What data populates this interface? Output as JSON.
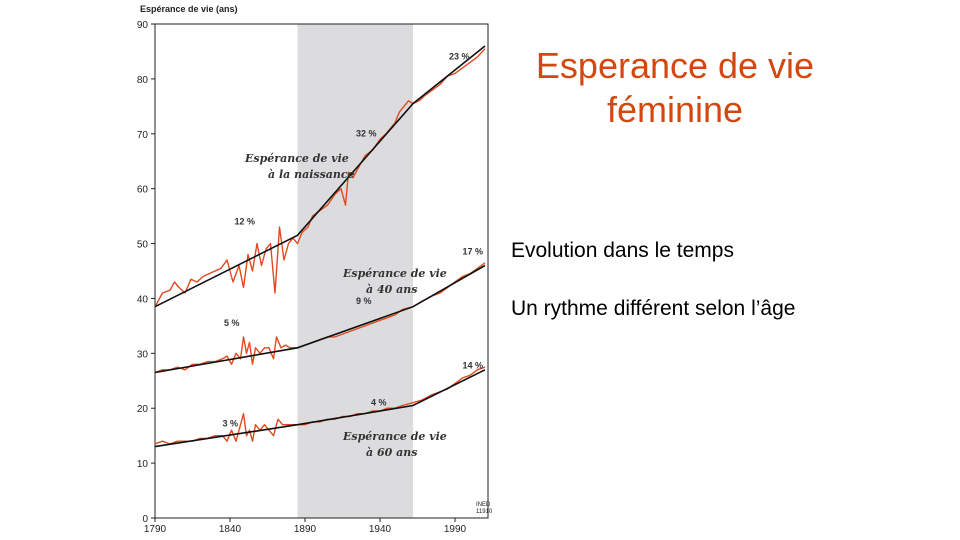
{
  "slide": {
    "title": "Esperance de vie féminine",
    "bullets": [
      "Evolution dans le temps",
      "Un rythme différent selon l’âge"
    ]
  },
  "chart_data": {
    "type": "line",
    "ylabel": "Espérance de vie (ans)",
    "xlim": [
      1790,
      2012
    ],
    "ylim": [
      0,
      90
    ],
    "x_ticks": [
      1790,
      1840,
      1890,
      1940,
      1990
    ],
    "y_ticks": [
      0,
      10,
      20,
      30,
      40,
      50,
      60,
      70,
      80,
      90
    ],
    "shaded_period": [
      1885,
      1962
    ],
    "shade_color": "#dcdcdf",
    "series_color": "#e04a1f",
    "trend_color": "#111111",
    "credit": [
      "INED",
      "11910"
    ],
    "series": [
      {
        "label": [
          "Espérance de vie",
          "à la naissance"
        ],
        "trend": [
          [
            1790,
            38.5
          ],
          [
            1885,
            51.5
          ],
          [
            1962,
            75.5
          ],
          [
            2010,
            86
          ]
        ],
        "observed": [
          [
            1790,
            38.5
          ],
          [
            1795,
            41
          ],
          [
            1800,
            41.5
          ],
          [
            1803,
            43
          ],
          [
            1806,
            42
          ],
          [
            1810,
            41
          ],
          [
            1814,
            43.5
          ],
          [
            1818,
            43
          ],
          [
            1822,
            44
          ],
          [
            1826,
            44.5
          ],
          [
            1830,
            45
          ],
          [
            1834,
            45.5
          ],
          [
            1838,
            47
          ],
          [
            1842,
            43
          ],
          [
            1846,
            46
          ],
          [
            1849,
            42
          ],
          [
            1852,
            48
          ],
          [
            1855,
            45
          ],
          [
            1858,
            50
          ],
          [
            1861,
            46
          ],
          [
            1864,
            49
          ],
          [
            1867,
            50
          ],
          [
            1870,
            41
          ],
          [
            1873,
            53
          ],
          [
            1876,
            47
          ],
          [
            1879,
            50
          ],
          [
            1882,
            51
          ],
          [
            1885,
            50
          ],
          [
            1888,
            52
          ],
          [
            1892,
            53
          ],
          [
            1895,
            55
          ],
          [
            1900,
            56
          ],
          [
            1905,
            57
          ],
          [
            1910,
            59
          ],
          [
            1914,
            60
          ],
          [
            1917,
            57
          ],
          [
            1919,
            63
          ],
          [
            1922,
            62
          ],
          [
            1926,
            64
          ],
          [
            1930,
            66
          ],
          [
            1935,
            67
          ],
          [
            1940,
            69
          ],
          [
            1944,
            70
          ],
          [
            1947,
            71
          ],
          [
            1950,
            72
          ],
          [
            1953,
            74
          ],
          [
            1956,
            75
          ],
          [
            1959,
            76
          ],
          [
            1962,
            75.5
          ],
          [
            1966,
            76
          ],
          [
            1970,
            77
          ],
          [
            1975,
            78
          ],
          [
            1980,
            79
          ],
          [
            1985,
            80.5
          ],
          [
            1990,
            81
          ],
          [
            1995,
            82
          ],
          [
            2000,
            83
          ],
          [
            2005,
            84
          ],
          [
            2010,
            85.5
          ]
        ],
        "annotations": [
          {
            "text": "12 %",
            "x": 1843,
            "y": 53.5
          },
          {
            "text": "32 %",
            "x": 1924,
            "y": 69.5
          },
          {
            "text": "23 %",
            "x": 1986,
            "y": 83.5
          }
        ]
      },
      {
        "label": [
          "Espérance de vie",
          "à 40 ans"
        ],
        "trend": [
          [
            1790,
            26.5
          ],
          [
            1885,
            31
          ],
          [
            1962,
            38.5
          ],
          [
            2010,
            46
          ]
        ],
        "observed": [
          [
            1790,
            26.5
          ],
          [
            1795,
            27
          ],
          [
            1800,
            27
          ],
          [
            1805,
            27.5
          ],
          [
            1810,
            27
          ],
          [
            1815,
            28
          ],
          [
            1820,
            28
          ],
          [
            1825,
            28.5
          ],
          [
            1830,
            28.5
          ],
          [
            1835,
            29
          ],
          [
            1838,
            29.5
          ],
          [
            1841,
            28
          ],
          [
            1844,
            30
          ],
          [
            1847,
            29
          ],
          [
            1849,
            33
          ],
          [
            1851,
            30
          ],
          [
            1853,
            32
          ],
          [
            1855,
            28
          ],
          [
            1857,
            31
          ],
          [
            1860,
            30
          ],
          [
            1863,
            31
          ],
          [
            1866,
            31
          ],
          [
            1869,
            29
          ],
          [
            1871,
            33
          ],
          [
            1874,
            31
          ],
          [
            1877,
            31.5
          ],
          [
            1880,
            31
          ],
          [
            1885,
            31
          ],
          [
            1890,
            31.5
          ],
          [
            1895,
            32
          ],
          [
            1900,
            32.5
          ],
          [
            1905,
            33
          ],
          [
            1910,
            33
          ],
          [
            1915,
            33.5
          ],
          [
            1920,
            34
          ],
          [
            1925,
            34.5
          ],
          [
            1930,
            35
          ],
          [
            1935,
            35.5
          ],
          [
            1940,
            36
          ],
          [
            1945,
            36.5
          ],
          [
            1950,
            37
          ],
          [
            1955,
            38
          ],
          [
            1962,
            38.5
          ],
          [
            1968,
            39.5
          ],
          [
            1975,
            40.5
          ],
          [
            1980,
            41
          ],
          [
            1985,
            42
          ],
          [
            1990,
            43
          ],
          [
            1995,
            44
          ],
          [
            2000,
            44.5
          ],
          [
            2005,
            45.5
          ],
          [
            2010,
            46.5
          ]
        ],
        "annotations": [
          {
            "text": "5 %",
            "x": 1836,
            "y": 35
          },
          {
            "text": "9 %",
            "x": 1924,
            "y": 39
          },
          {
            "text": "17 %",
            "x": 1995,
            "y": 48
          }
        ]
      },
      {
        "label": [
          "Espérance de vie",
          "à 60 ans"
        ],
        "trend": [
          [
            1790,
            13
          ],
          [
            1885,
            17
          ],
          [
            1962,
            20.5
          ],
          [
            2010,
            27
          ]
        ],
        "observed": [
          [
            1790,
            13.5
          ],
          [
            1795,
            14
          ],
          [
            1800,
            13.5
          ],
          [
            1805,
            14
          ],
          [
            1810,
            14
          ],
          [
            1815,
            14
          ],
          [
            1820,
            14.5
          ],
          [
            1825,
            14.5
          ],
          [
            1830,
            15
          ],
          [
            1835,
            15
          ],
          [
            1838,
            14
          ],
          [
            1841,
            16
          ],
          [
            1844,
            14
          ],
          [
            1847,
            17
          ],
          [
            1849,
            19
          ],
          [
            1851,
            15
          ],
          [
            1853,
            16
          ],
          [
            1855,
            14
          ],
          [
            1857,
            17
          ],
          [
            1860,
            16
          ],
          [
            1863,
            17
          ],
          [
            1866,
            16
          ],
          [
            1869,
            15
          ],
          [
            1872,
            18
          ],
          [
            1875,
            17
          ],
          [
            1878,
            17
          ],
          [
            1882,
            17
          ],
          [
            1885,
            17
          ],
          [
            1890,
            17
          ],
          [
            1895,
            17.5
          ],
          [
            1900,
            17.5
          ],
          [
            1905,
            18
          ],
          [
            1910,
            18
          ],
          [
            1915,
            18.5
          ],
          [
            1920,
            18.5
          ],
          [
            1925,
            19
          ],
          [
            1930,
            19
          ],
          [
            1935,
            19.5
          ],
          [
            1940,
            19.5
          ],
          [
            1945,
            20
          ],
          [
            1950,
            20
          ],
          [
            1955,
            20.5
          ],
          [
            1962,
            21
          ],
          [
            1968,
            21.5
          ],
          [
            1975,
            22.5
          ],
          [
            1980,
            23
          ],
          [
            1985,
            23.5
          ],
          [
            1990,
            24.5
          ],
          [
            1995,
            25.5
          ],
          [
            2000,
            26
          ],
          [
            2005,
            27
          ],
          [
            2010,
            27.5
          ]
        ],
        "annotations": [
          {
            "text": "3 %",
            "x": 1835,
            "y": 16.7
          },
          {
            "text": "4 %",
            "x": 1934,
            "y": 20.5
          },
          {
            "text": "14 %",
            "x": 1995,
            "y": 27.2
          }
        ]
      }
    ]
  }
}
